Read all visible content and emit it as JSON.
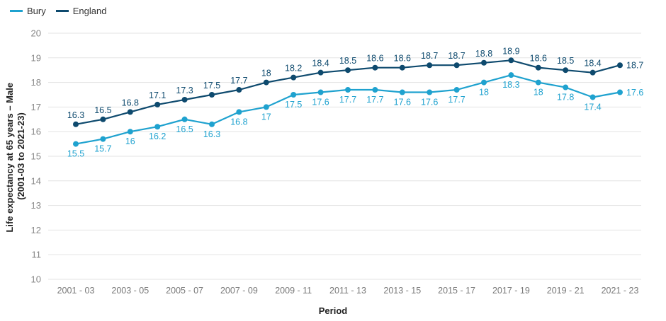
{
  "chart_data": {
    "type": "line",
    "xlabel": "Period",
    "ylabel_line1": "Life expectancy at 65 years – Male",
    "ylabel_line2": "(2001-03 to 2021-23)",
    "ylim": [
      10,
      20
    ],
    "yticks": [
      10,
      11,
      12,
      13,
      14,
      15,
      16,
      17,
      18,
      19,
      20
    ],
    "grid": true,
    "legend_position": "top-left",
    "x": [
      "2001 - 03",
      "2002 - 04",
      "2003 - 05",
      "2004 - 06",
      "2005 - 07",
      "2006 - 08",
      "2007 - 09",
      "2008 - 10",
      "2009 - 11",
      "2010 - 12",
      "2011 - 13",
      "2012 - 14",
      "2013 - 15",
      "2014 - 16",
      "2015 - 17",
      "2016 - 18",
      "2017 - 19",
      "2018 - 20",
      "2019 - 21",
      "2020 - 22",
      "2021 - 23"
    ],
    "x_tick_labels_shown": [
      "2001 - 03",
      "2003 - 05",
      "2005 - 07",
      "2007 - 09",
      "2009 - 11",
      "2011 - 13",
      "2013 - 15",
      "2015 - 17",
      "2017 - 19",
      "2019 - 21",
      "2021 - 23"
    ],
    "series": [
      {
        "name": "Bury",
        "color": "#1fa2cf",
        "label_position": "below",
        "values": [
          15.5,
          15.7,
          16,
          16.2,
          16.5,
          16.3,
          16.8,
          17,
          17.5,
          17.6,
          17.7,
          17.7,
          17.6,
          17.6,
          17.7,
          18,
          18.3,
          18,
          17.8,
          17.4,
          17.6
        ],
        "labels": [
          "15.5",
          "15.7",
          "16",
          "16.2",
          "16.5",
          "16.3",
          "16.8",
          "17",
          "17.5",
          "17.6",
          "17.7",
          "17.7",
          "17.6",
          "17.6",
          "17.7",
          "18",
          "18.3",
          "18",
          "17.8",
          "17.4",
          "17.6"
        ]
      },
      {
        "name": "England",
        "color": "#0e4a6e",
        "label_position": "above",
        "values": [
          16.3,
          16.5,
          16.8,
          17.1,
          17.3,
          17.5,
          17.7,
          18,
          18.2,
          18.4,
          18.5,
          18.6,
          18.6,
          18.7,
          18.7,
          18.8,
          18.9,
          18.6,
          18.5,
          18.4,
          18.7
        ],
        "labels": [
          "16.3",
          "16.5",
          "16.8",
          "17.1",
          "17.3",
          "17.5",
          "17.7",
          "18",
          "18.2",
          "18.4",
          "18.5",
          "18.6",
          "18.6",
          "18.7",
          "18.7",
          "18.8",
          "18.9",
          "18.6",
          "18.5",
          "18.4",
          "18.7"
        ]
      }
    ]
  }
}
